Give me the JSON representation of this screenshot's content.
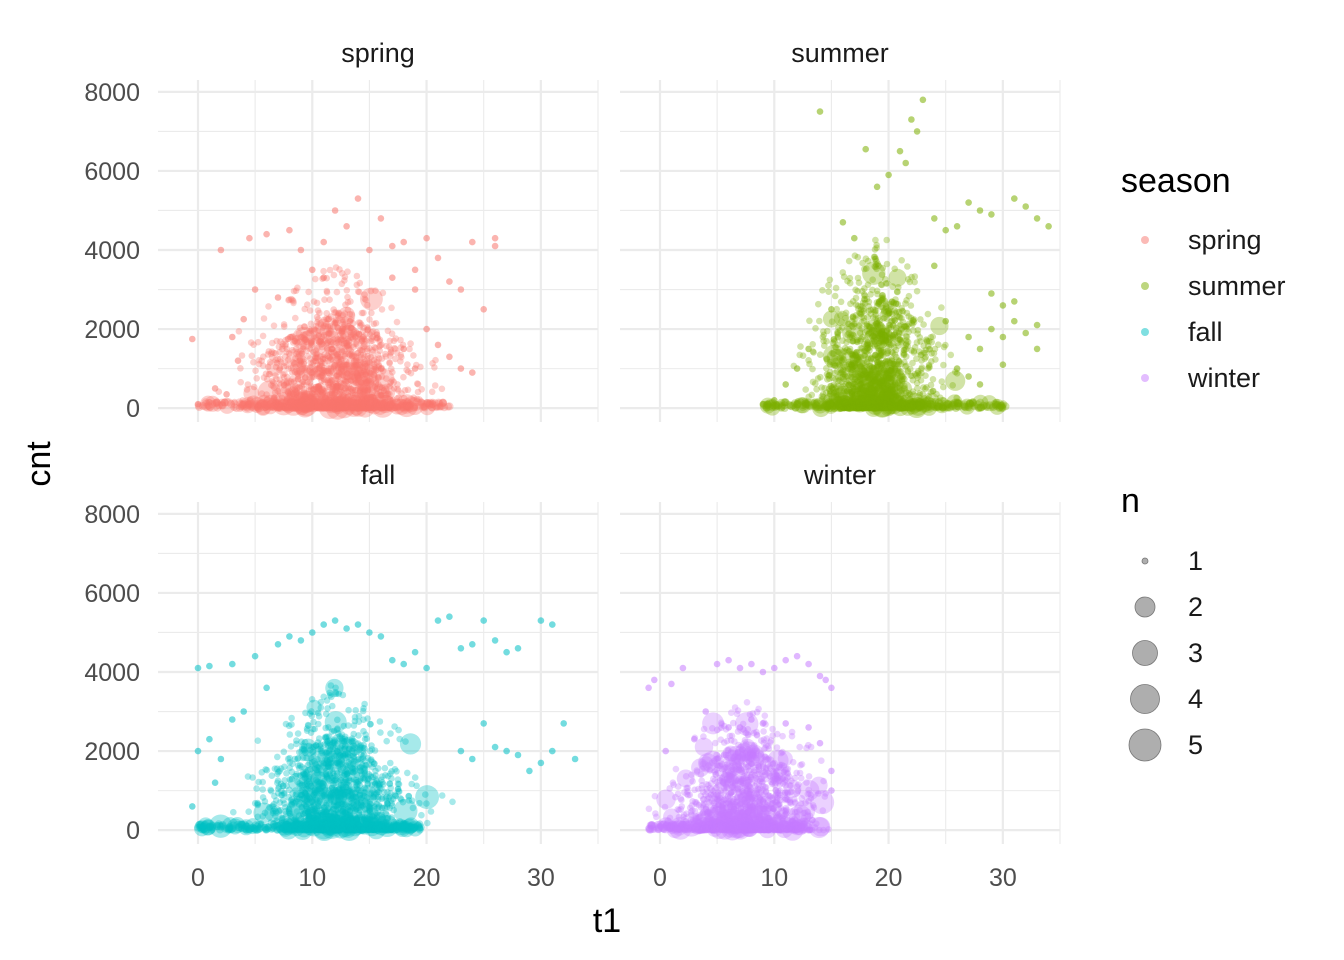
{
  "chart_data": {
    "type": "scatter",
    "facet_by": "season",
    "xlabel": "t1",
    "ylabel": "cnt",
    "xlim": [
      -3.5,
      35
    ],
    "ylim": [
      -350,
      8300
    ],
    "x_ticks": [
      0,
      10,
      20,
      30
    ],
    "y_ticks": [
      0,
      2000,
      4000,
      6000,
      8000
    ],
    "grid": true,
    "point_alpha": 0.35,
    "panels": [
      {
        "name": "spring",
        "color": "#F8766D",
        "cloud": {
          "x_range": [
            0,
            26
          ],
          "core": {
            "x_center": 12,
            "x_sd": 4.5,
            "y_max": 2500
          }
        },
        "points": [
          [
            -0.5,
            1750
          ],
          [
            0,
            100
          ],
          [
            1,
            150
          ],
          [
            1.5,
            500
          ],
          [
            2,
            4000
          ],
          [
            2.5,
            350
          ],
          [
            3,
            1800
          ],
          [
            3.5,
            1200
          ],
          [
            4,
            2250
          ],
          [
            4.5,
            4300
          ],
          [
            5,
            3000
          ],
          [
            6,
            4400
          ],
          [
            7,
            2800
          ],
          [
            8,
            4500
          ],
          [
            9,
            4000
          ],
          [
            10,
            3500
          ],
          [
            11,
            4200
          ],
          [
            12,
            5000
          ],
          [
            13,
            4600
          ],
          [
            14,
            5300
          ],
          [
            15,
            4000
          ],
          [
            16,
            4800
          ],
          [
            17,
            4100
          ],
          [
            18,
            4200
          ],
          [
            19,
            3500
          ],
          [
            20,
            4300
          ],
          [
            21,
            3800
          ],
          [
            22,
            3200
          ],
          [
            23,
            3000
          ],
          [
            24,
            4200
          ],
          [
            25,
            2500
          ],
          [
            26,
            4300
          ],
          [
            26,
            4100
          ],
          [
            18,
            1500
          ],
          [
            19,
            1000
          ],
          [
            20,
            2000
          ],
          [
            21,
            1600
          ],
          [
            22,
            1300
          ],
          [
            23,
            1000
          ],
          [
            24,
            900
          ],
          [
            19,
            3000
          ],
          [
            17,
            3300
          ],
          [
            11,
            3300
          ]
        ]
      },
      {
        "name": "summer",
        "color": "#7CAE00",
        "cloud": {
          "x_range": [
            9,
            34
          ],
          "core": {
            "x_center": 19,
            "x_sd": 3.5,
            "y_max": 3000
          }
        },
        "points": [
          [
            9,
            100
          ],
          [
            10,
            200
          ],
          [
            11,
            600
          ],
          [
            12,
            1000
          ],
          [
            13,
            1500
          ],
          [
            14,
            7500
          ],
          [
            15,
            2500
          ],
          [
            16,
            4700
          ],
          [
            17,
            4300
          ],
          [
            18,
            6550
          ],
          [
            19,
            5600
          ],
          [
            20,
            5900
          ],
          [
            21,
            6500
          ],
          [
            21.5,
            6200
          ],
          [
            22,
            7300
          ],
          [
            22.5,
            7000
          ],
          [
            23,
            7800
          ],
          [
            24,
            4800
          ],
          [
            25,
            4500
          ],
          [
            26,
            4600
          ],
          [
            27,
            5200
          ],
          [
            28,
            5000
          ],
          [
            29,
            4900
          ],
          [
            30,
            2600
          ],
          [
            31,
            5300
          ],
          [
            32,
            5100
          ],
          [
            33,
            4800
          ],
          [
            33,
            1500
          ],
          [
            34,
            4600
          ],
          [
            27,
            1800
          ],
          [
            28,
            1500
          ],
          [
            29,
            2000
          ],
          [
            30,
            1800
          ],
          [
            31,
            2200
          ],
          [
            32,
            1900
          ],
          [
            33,
            2100
          ],
          [
            29,
            2900
          ],
          [
            31,
            2700
          ],
          [
            25,
            2200
          ],
          [
            26,
            1000
          ],
          [
            27,
            800
          ],
          [
            28,
            600
          ],
          [
            30,
            1100
          ],
          [
            24,
            3600
          ]
        ]
      },
      {
        "name": "fall",
        "color": "#00BFC4",
        "cloud": {
          "x_range": [
            0,
            23
          ],
          "core": {
            "x_center": 12,
            "x_sd": 4,
            "y_max": 2500
          }
        },
        "points": [
          [
            -0.5,
            600
          ],
          [
            0,
            4100
          ],
          [
            0,
            2000
          ],
          [
            0.5,
            100
          ],
          [
            1,
            4150
          ],
          [
            1,
            2300
          ],
          [
            1.5,
            1200
          ],
          [
            2,
            1800
          ],
          [
            3,
            2800
          ],
          [
            3,
            4200
          ],
          [
            4,
            3000
          ],
          [
            5,
            4400
          ],
          [
            6,
            3600
          ],
          [
            7,
            4700
          ],
          [
            8,
            4900
          ],
          [
            9,
            4800
          ],
          [
            10,
            5000
          ],
          [
            11,
            5200
          ],
          [
            12,
            5300
          ],
          [
            13,
            5100
          ],
          [
            14,
            5200
          ],
          [
            15,
            5000
          ],
          [
            16,
            4900
          ],
          [
            17,
            4300
          ],
          [
            18,
            4200
          ],
          [
            19,
            4500
          ],
          [
            20,
            4100
          ],
          [
            21,
            5300
          ],
          [
            22,
            5400
          ],
          [
            23,
            4600
          ],
          [
            24,
            4700
          ],
          [
            25,
            5300
          ],
          [
            26,
            4800
          ],
          [
            27,
            4500
          ],
          [
            28,
            4600
          ],
          [
            30,
            5300
          ],
          [
            31,
            5200
          ],
          [
            23,
            2000
          ],
          [
            24,
            1800
          ],
          [
            25,
            2700
          ],
          [
            26,
            2100
          ],
          [
            27,
            2000
          ],
          [
            28,
            1900
          ],
          [
            30,
            1700
          ],
          [
            31,
            2000
          ],
          [
            32,
            2700
          ],
          [
            33,
            1800
          ],
          [
            29,
            1500
          ]
        ]
      },
      {
        "name": "winter",
        "color": "#C77CFF",
        "cloud": {
          "x_range": [
            -1,
            15
          ],
          "core": {
            "x_center": 7.5,
            "x_sd": 3.8,
            "y_max": 2200
          }
        },
        "points": [
          [
            -1,
            3600
          ],
          [
            -0.5,
            3800
          ],
          [
            0,
            100
          ],
          [
            0.5,
            2000
          ],
          [
            1,
            3700
          ],
          [
            2,
            4100
          ],
          [
            3,
            2300
          ],
          [
            4,
            3000
          ],
          [
            5,
            4200
          ],
          [
            6,
            4300
          ],
          [
            7,
            4100
          ],
          [
            8,
            4200
          ],
          [
            9,
            4000
          ],
          [
            10,
            4100
          ],
          [
            11,
            4300
          ],
          [
            12,
            4400
          ],
          [
            13,
            4200
          ],
          [
            14,
            3900
          ],
          [
            14.5,
            3800
          ],
          [
            15,
            3600
          ],
          [
            15,
            1500
          ],
          [
            15,
            1000
          ],
          [
            14,
            2200
          ],
          [
            13,
            2600
          ],
          [
            11,
            2700
          ],
          [
            9,
            2700
          ],
          [
            7,
            2600
          ],
          [
            6,
            2600
          ],
          [
            8,
            2800
          ]
        ]
      }
    ],
    "legends": {
      "color": {
        "title": "season",
        "entries": [
          "spring",
          "summer",
          "fall",
          "winter"
        ]
      },
      "size": {
        "title": "n",
        "entries": [
          "1",
          "2",
          "3",
          "4",
          "5"
        ]
      }
    }
  }
}
